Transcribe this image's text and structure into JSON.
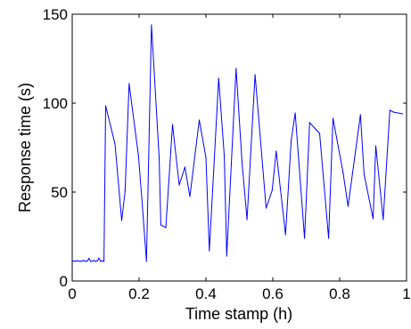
{
  "chart_data": {
    "type": "line",
    "title": "",
    "xlabel": "Time stamp (h)",
    "ylabel": "Response time (s)",
    "xlim": [
      0,
      1
    ],
    "ylim": [
      0,
      150
    ],
    "xticks": [
      0,
      0.2,
      0.4,
      0.6,
      0.8,
      1
    ],
    "xtick_labels": [
      "0",
      "0.2",
      "0.4",
      "0.6",
      "0.8",
      "1"
    ],
    "yticks": [
      0,
      50,
      100,
      150
    ],
    "ytick_labels": [
      "0",
      "50",
      "100",
      "150"
    ],
    "grid": false,
    "legend": "none",
    "series": [
      {
        "color": "#0000ff",
        "x": [
          0,
          0.005,
          0.01,
          0.015,
          0.02,
          0.025,
          0.03,
          0.035,
          0.04,
          0.045,
          0.05,
          0.055,
          0.06,
          0.065,
          0.07,
          0.075,
          0.08,
          0.085,
          0.09,
          0.095,
          0.1,
          0.128,
          0.148,
          0.158,
          0.17,
          0.198,
          0.208,
          0.222,
          0.237,
          0.26,
          0.265,
          0.28,
          0.3,
          0.32,
          0.337,
          0.352,
          0.38,
          0.4,
          0.41,
          0.438,
          0.455,
          0.462,
          0.49,
          0.508,
          0.523,
          0.547,
          0.58,
          0.598,
          0.61,
          0.638,
          0.655,
          0.667,
          0.695,
          0.71,
          0.725,
          0.74,
          0.767,
          0.78,
          0.81,
          0.825,
          0.862,
          0.873,
          0.9,
          0.908,
          0.93,
          0.95,
          0.96,
          0.988
        ],
        "y": [
          11,
          11.3,
          11,
          11.4,
          11.1,
          11,
          11.3,
          11.5,
          11,
          11.2,
          12.7,
          11,
          11.2,
          11.5,
          11,
          11.3,
          12.8,
          11,
          11.4,
          11,
          98.5,
          77,
          34,
          50.5,
          111,
          70.5,
          47,
          11,
          144,
          69.5,
          31.5,
          30,
          88,
          54,
          64,
          47.5,
          90.5,
          69.5,
          17,
          114,
          70,
          14,
          119.5,
          66.5,
          34.5,
          116,
          41,
          51,
          73,
          26,
          79,
          94.5,
          24,
          89,
          86,
          83,
          24,
          91.5,
          61,
          42,
          93.5,
          60,
          35,
          76,
          34.5,
          96,
          95,
          94
        ]
      }
    ]
  }
}
